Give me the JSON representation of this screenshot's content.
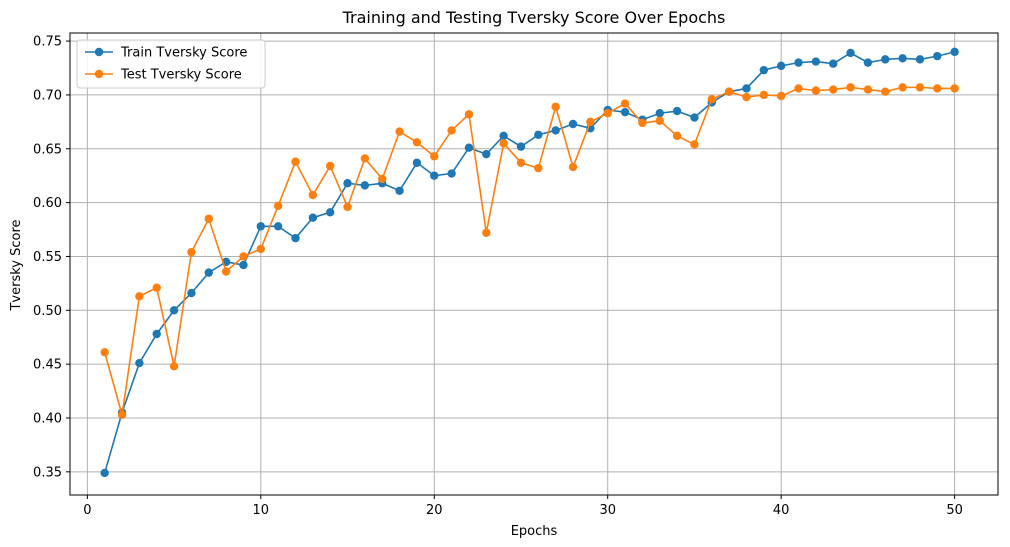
{
  "chart_data": {
    "type": "line",
    "title": "Training and Testing Tversky Score Over Epochs",
    "xlabel": "Epochs",
    "ylabel": "Tversky Score",
    "xlim": [
      -1,
      52.5
    ],
    "ylim": [
      0.3285,
      0.7575
    ],
    "xticks": [
      0,
      10,
      20,
      30,
      40,
      50
    ],
    "yticks": [
      0.35,
      0.4,
      0.45,
      0.5,
      0.55,
      0.6,
      0.65,
      0.7,
      0.75
    ],
    "ytick_labels": [
      "0.35",
      "0.40",
      "0.45",
      "0.50",
      "0.55",
      "0.60",
      "0.65",
      "0.70",
      "0.75"
    ],
    "grid": true,
    "legend_position": "top-left",
    "x": [
      1,
      2,
      3,
      4,
      5,
      6,
      7,
      8,
      9,
      10,
      11,
      12,
      13,
      14,
      15,
      16,
      17,
      18,
      19,
      20,
      21,
      22,
      23,
      24,
      25,
      26,
      27,
      28,
      29,
      30,
      31,
      32,
      33,
      34,
      35,
      36,
      37,
      38,
      39,
      40,
      41,
      42,
      43,
      44,
      45,
      46,
      47,
      48,
      49,
      50
    ],
    "series": [
      {
        "name": "Train Tversky Score",
        "color": "#1f77b4",
        "values": [
          0.349,
          0.405,
          0.451,
          0.478,
          0.5,
          0.516,
          0.535,
          0.545,
          0.542,
          0.578,
          0.578,
          0.567,
          0.586,
          0.591,
          0.618,
          0.616,
          0.618,
          0.611,
          0.637,
          0.625,
          0.627,
          0.651,
          0.645,
          0.662,
          0.652,
          0.663,
          0.667,
          0.673,
          0.669,
          0.686,
          0.684,
          0.677,
          0.683,
          0.685,
          0.679,
          0.693,
          0.703,
          0.706,
          0.723,
          0.727,
          0.73,
          0.731,
          0.729,
          0.739,
          0.73,
          0.733,
          0.734,
          0.733,
          0.736,
          0.74
        ]
      },
      {
        "name": "Test Tversky Score",
        "color": "#ff7f0e",
        "values": [
          0.461,
          0.403,
          0.513,
          0.521,
          0.448,
          0.554,
          0.585,
          0.536,
          0.55,
          0.557,
          0.597,
          0.638,
          0.607,
          0.634,
          0.596,
          0.641,
          0.622,
          0.666,
          0.656,
          0.643,
          0.667,
          0.682,
          0.572,
          0.655,
          0.637,
          0.632,
          0.689,
          0.633,
          0.675,
          0.683,
          0.692,
          0.674,
          0.676,
          0.662,
          0.654,
          0.696,
          0.703,
          0.698,
          0.7,
          0.699,
          0.706,
          0.704,
          0.705,
          0.707,
          0.705,
          0.703,
          0.707,
          0.707,
          0.706,
          0.706
        ]
      }
    ]
  }
}
